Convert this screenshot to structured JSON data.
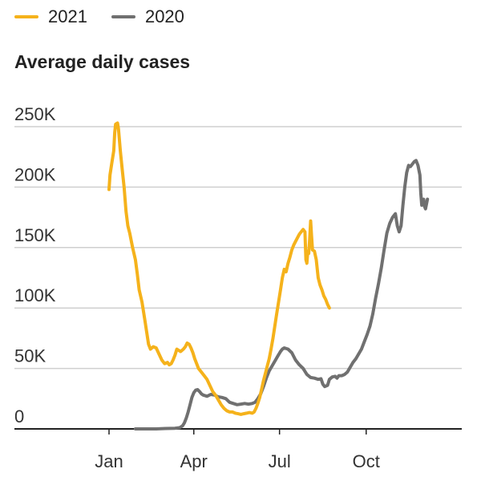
{
  "chart_data": {
    "type": "line",
    "title": "Average daily cases",
    "xlabel": "",
    "ylabel": "",
    "ylim": [
      0,
      250000
    ],
    "yticks": [
      {
        "value": 0,
        "label": "0"
      },
      {
        "value": 50000,
        "label": "50K"
      },
      {
        "value": 100000,
        "label": "100K"
      },
      {
        "value": 150000,
        "label": "150K"
      },
      {
        "value": 200000,
        "label": "200K"
      },
      {
        "value": 250000,
        "label": "250K"
      }
    ],
    "xticks": [
      {
        "value": 0,
        "label": "Jan"
      },
      {
        "value": 90,
        "label": "Apr"
      },
      {
        "value": 181,
        "label": "Jul"
      },
      {
        "value": 273,
        "label": "Oct"
      }
    ],
    "xlim": [
      0,
      375
    ],
    "grid": true,
    "legend_position": "top-left",
    "series": [
      {
        "name": "2021",
        "color": "#f5b21b",
        "points": [
          [
            0,
            198000
          ],
          [
            1,
            210000
          ],
          [
            3,
            220000
          ],
          [
            5,
            230000
          ],
          [
            6,
            245000
          ],
          [
            7,
            252000
          ],
          [
            9,
            253000
          ],
          [
            10,
            248000
          ],
          [
            12,
            230000
          ],
          [
            14,
            215000
          ],
          [
            16,
            200000
          ],
          [
            18,
            180000
          ],
          [
            20,
            168000
          ],
          [
            22,
            162000
          ],
          [
            25,
            150000
          ],
          [
            28,
            140000
          ],
          [
            30,
            128000
          ],
          [
            32,
            115000
          ],
          [
            35,
            105000
          ],
          [
            38,
            90000
          ],
          [
            40,
            80000
          ],
          [
            42,
            70000
          ],
          [
            44,
            66000
          ],
          [
            47,
            68000
          ],
          [
            50,
            67000
          ],
          [
            53,
            62000
          ],
          [
            56,
            57000
          ],
          [
            59,
            54000
          ],
          [
            62,
            55000
          ],
          [
            64,
            53000
          ],
          [
            66,
            54000
          ],
          [
            68,
            57000
          ],
          [
            70,
            61000
          ],
          [
            72,
            66000
          ],
          [
            74,
            65000
          ],
          [
            76,
            64000
          ],
          [
            79,
            66000
          ],
          [
            81,
            68000
          ],
          [
            83,
            71000
          ],
          [
            85,
            70000
          ],
          [
            87,
            67000
          ],
          [
            89,
            63000
          ],
          [
            91,
            58000
          ],
          [
            93,
            54000
          ],
          [
            95,
            50000
          ],
          [
            98,
            47000
          ],
          [
            101,
            44000
          ],
          [
            104,
            41000
          ],
          [
            107,
            36000
          ],
          [
            110,
            31000
          ],
          [
            113,
            28000
          ],
          [
            116,
            24000
          ],
          [
            119,
            20000
          ],
          [
            122,
            17000
          ],
          [
            125,
            15000
          ],
          [
            128,
            14000
          ],
          [
            131,
            14000
          ],
          [
            134,
            13000
          ],
          [
            137,
            12500
          ],
          [
            140,
            12000
          ],
          [
            143,
            12500
          ],
          [
            146,
            13000
          ],
          [
            149,
            13500
          ],
          [
            152,
            13000
          ],
          [
            154,
            14000
          ],
          [
            156,
            17000
          ],
          [
            158,
            21000
          ],
          [
            160,
            26000
          ],
          [
            162,
            33000
          ],
          [
            164,
            40000
          ],
          [
            166,
            46000
          ],
          [
            168,
            52000
          ],
          [
            170,
            58000
          ],
          [
            172,
            66000
          ],
          [
            174,
            75000
          ],
          [
            176,
            85000
          ],
          [
            178,
            95000
          ],
          [
            180,
            105000
          ],
          [
            182,
            115000
          ],
          [
            184,
            125000
          ],
          [
            186,
            132000
          ],
          [
            188,
            130000
          ],
          [
            190,
            137000
          ],
          [
            192,
            142000
          ],
          [
            194,
            148000
          ],
          [
            196,
            152000
          ],
          [
            198,
            155000
          ],
          [
            200,
            158000
          ],
          [
            202,
            161000
          ],
          [
            204,
            163000
          ],
          [
            206,
            165000
          ],
          [
            208,
            163000
          ],
          [
            209,
            140000
          ],
          [
            210,
            137000
          ],
          [
            211,
            147000
          ],
          [
            212,
            145000
          ],
          [
            213,
            157000
          ],
          [
            214,
            172000
          ],
          [
            215,
            160000
          ],
          [
            216,
            148000
          ],
          [
            218,
            147000
          ],
          [
            220,
            140000
          ],
          [
            222,
            125000
          ],
          [
            224,
            119000
          ],
          [
            226,
            115000
          ],
          [
            228,
            110000
          ],
          [
            230,
            107000
          ],
          [
            232,
            103000
          ],
          [
            234,
            100000
          ]
        ]
      },
      {
        "name": "2020",
        "color": "#707070",
        "points": [
          [
            28,
            0
          ],
          [
            50,
            0
          ],
          [
            60,
            300
          ],
          [
            70,
            500
          ],
          [
            75,
            1000
          ],
          [
            78,
            2500
          ],
          [
            80,
            5000
          ],
          [
            82,
            9000
          ],
          [
            84,
            14000
          ],
          [
            86,
            20000
          ],
          [
            88,
            26000
          ],
          [
            90,
            30000
          ],
          [
            92,
            32000
          ],
          [
            94,
            32500
          ],
          [
            96,
            31000
          ],
          [
            98,
            29000
          ],
          [
            100,
            28000
          ],
          [
            104,
            27000
          ],
          [
            108,
            28500
          ],
          [
            112,
            28000
          ],
          [
            116,
            26500
          ],
          [
            120,
            26000
          ],
          [
            124,
            25000
          ],
          [
            128,
            22000
          ],
          [
            132,
            21000
          ],
          [
            136,
            20000
          ],
          [
            140,
            20500
          ],
          [
            144,
            21000
          ],
          [
            148,
            20500
          ],
          [
            152,
            21000
          ],
          [
            155,
            22000
          ],
          [
            158,
            25000
          ],
          [
            161,
            29000
          ],
          [
            164,
            35000
          ],
          [
            167,
            42000
          ],
          [
            170,
            48000
          ],
          [
            173,
            52000
          ],
          [
            176,
            56000
          ],
          [
            179,
            60000
          ],
          [
            182,
            64000
          ],
          [
            184,
            66000
          ],
          [
            186,
            67000
          ],
          [
            190,
            66000
          ],
          [
            194,
            63000
          ],
          [
            198,
            57000
          ],
          [
            202,
            53000
          ],
          [
            206,
            50000
          ],
          [
            210,
            45000
          ],
          [
            214,
            42500
          ],
          [
            218,
            42000
          ],
          [
            222,
            41000
          ],
          [
            225,
            41500
          ],
          [
            227,
            37000
          ],
          [
            229,
            35000
          ],
          [
            232,
            36000
          ],
          [
            234,
            41000
          ],
          [
            237,
            43000
          ],
          [
            240,
            43500
          ],
          [
            242,
            42000
          ],
          [
            244,
            44000
          ],
          [
            247,
            44000
          ],
          [
            250,
            45000
          ],
          [
            253,
            47000
          ],
          [
            256,
            51000
          ],
          [
            259,
            55000
          ],
          [
            262,
            58000
          ],
          [
            265,
            62000
          ],
          [
            268,
            66000
          ],
          [
            271,
            72000
          ],
          [
            274,
            78000
          ],
          [
            277,
            85000
          ],
          [
            280,
            95000
          ],
          [
            283,
            108000
          ],
          [
            286,
            120000
          ],
          [
            289,
            133000
          ],
          [
            292,
            148000
          ],
          [
            295,
            162000
          ],
          [
            298,
            170000
          ],
          [
            301,
            175000
          ],
          [
            304,
            178000
          ],
          [
            306,
            168000
          ],
          [
            308,
            163000
          ],
          [
            310,
            168000
          ],
          [
            312,
            185000
          ],
          [
            314,
            200000
          ],
          [
            316,
            212000
          ],
          [
            318,
            218000
          ],
          [
            320,
            217000
          ],
          [
            322,
            219000
          ],
          [
            324,
            221000
          ],
          [
            326,
            222000
          ],
          [
            328,
            218000
          ],
          [
            330,
            210000
          ],
          [
            331,
            195000
          ],
          [
            332,
            185000
          ],
          [
            333,
            187000
          ],
          [
            334,
            190000
          ],
          [
            335,
            184000
          ],
          [
            336,
            182000
          ],
          [
            338,
            190000
          ]
        ]
      }
    ]
  }
}
